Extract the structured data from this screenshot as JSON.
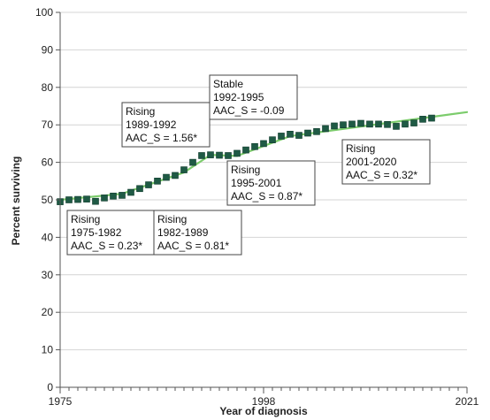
{
  "chart_data": {
    "type": "line",
    "xlabel": "Year of diagnosis",
    "ylabel": "Percent surviving",
    "xlim": [
      1975,
      2021
    ],
    "ylim": [
      0,
      100
    ],
    "x_ticks": [
      1975,
      1998,
      2021
    ],
    "y_ticks": [
      0,
      10,
      20,
      30,
      40,
      50,
      60,
      70,
      80,
      90,
      100
    ],
    "grid": "horizontal",
    "colors": {
      "fit_line": "#7ccc6c",
      "marker": "#1f5a45",
      "marker_edge": "#0f3b2c"
    },
    "series": [
      {
        "type": "scatter",
        "x": [
          1975,
          1976,
          1977,
          1978,
          1979,
          1980,
          1981,
          1982,
          1983,
          1984,
          1985,
          1986,
          1987,
          1988,
          1989,
          1990,
          1991,
          1992,
          1993,
          1994,
          1995,
          1996,
          1997,
          1998,
          1999,
          2000,
          2001,
          2002,
          2003,
          2004,
          2005,
          2006,
          2007,
          2008,
          2009,
          2010,
          2011,
          2012,
          2013,
          2014,
          2015,
          2016,
          2017,
          2018,
          2019,
          2020
        ],
        "y": [
          49.5,
          50.0,
          50.1,
          50.2,
          49.6,
          50.5,
          51.0,
          51.2,
          52.0,
          53.0,
          54.0,
          55.0,
          56.0,
          56.5,
          58.0,
          60.0,
          61.8,
          62.0,
          61.9,
          61.8,
          62.4,
          63.3,
          64.2,
          65.0,
          66.0,
          67.0,
          67.5,
          67.2,
          67.8,
          68.2,
          69.0,
          69.7,
          70.0,
          70.2,
          70.4,
          70.2,
          70.2,
          70.1,
          69.6,
          70.2,
          70.5,
          71.5,
          71.8,
          null,
          null,
          null
        ]
      }
    ],
    "fit_segments": [
      {
        "x": [
          1975,
          1982
        ],
        "y": [
          50.0,
          51.6
        ]
      },
      {
        "x": [
          1982,
          1989
        ],
        "y": [
          51.6,
          57.3
        ]
      },
      {
        "x": [
          1989,
          1992
        ],
        "y": [
          57.3,
          62.0
        ]
      },
      {
        "x": [
          1992,
          1995
        ],
        "y": [
          62.0,
          61.7
        ]
      },
      {
        "x": [
          1995,
          2001
        ],
        "y": [
          61.7,
          67.0
        ]
      },
      {
        "x": [
          2001,
          2021
        ],
        "y": [
          67.0,
          73.4
        ]
      }
    ],
    "annotations": [
      {
        "lines": [
          "Rising",
          "1975-1982",
          "AAC_S = 0.23*"
        ]
      },
      {
        "lines": [
          "Rising",
          "1982-1989",
          "AAC_S = 0.81*"
        ]
      },
      {
        "lines": [
          "Rising",
          "1989-1992",
          "AAC_S = 1.56*"
        ]
      },
      {
        "lines": [
          "Stable",
          "1992-1995",
          "AAC_S = -0.09"
        ]
      },
      {
        "lines": [
          "Rising",
          "1995-2001",
          "AAC_S = 0.87*"
        ]
      },
      {
        "lines": [
          "Rising",
          "2001-2020",
          "AAC_S = 0.32*"
        ]
      }
    ]
  }
}
